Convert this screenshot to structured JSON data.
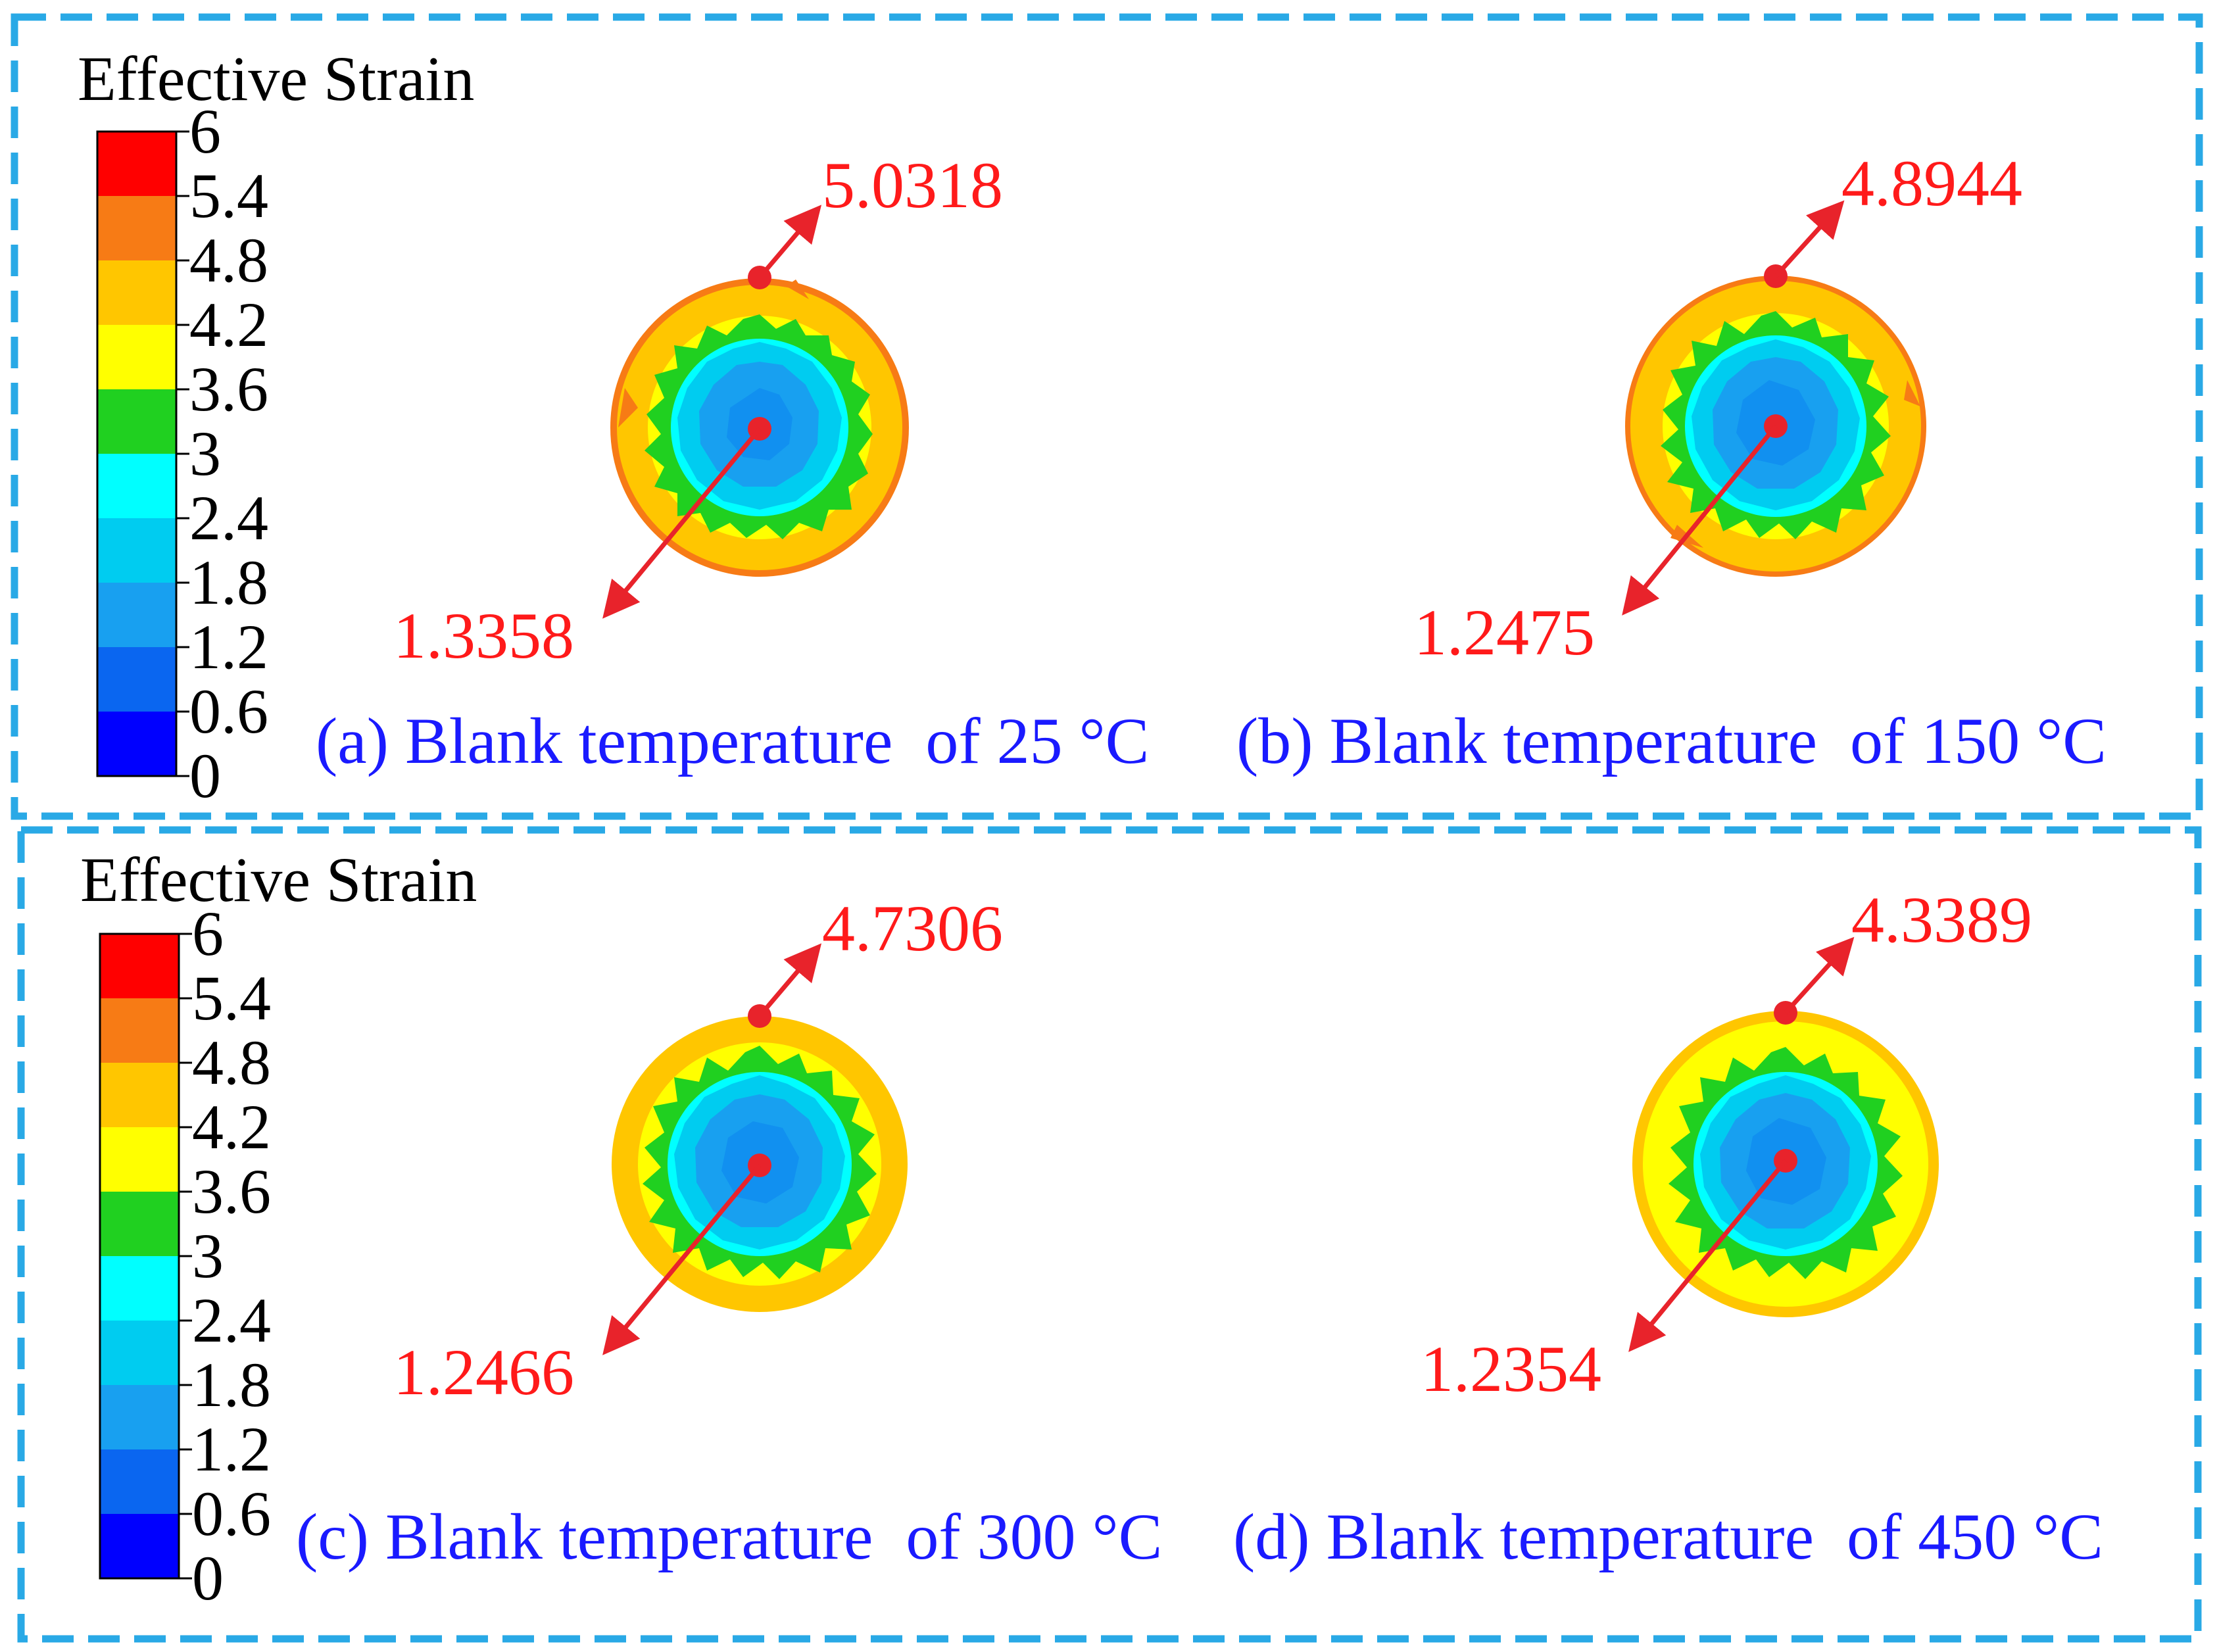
{
  "colors": {
    "frame": "#29a9e6",
    "legend_text": "#000000",
    "value_text": "#ff1a1a",
    "caption_text": "#1a1aff",
    "arrow": "#e8232b"
  },
  "legend": {
    "title": "Effective Strain",
    "ticks": [
      "6",
      "5.4",
      "4.8",
      "4.2",
      "3.6",
      "3",
      "2.4",
      "1.8",
      "1.2",
      "0.6",
      "0"
    ],
    "bands": [
      "#ff0000",
      "#f77b15",
      "#ffc600",
      "#ffff00",
      "#20d020",
      "#00ffff",
      "#00ccf0",
      "#18a0f0",
      "#0a66f0",
      "#0000ff"
    ]
  },
  "panels": [
    {
      "id": "a",
      "max": "5.0318",
      "min": "1.3358",
      "caption": "(a) Blank temperature  of 25 °C"
    },
    {
      "id": "b",
      "max": "4.8944",
      "min": "1.2475",
      "caption": "(b) Blank temperature  of 150 °C"
    },
    {
      "id": "c",
      "max": "4.7306",
      "min": "1.2466",
      "caption": "(c) Blank temperature  of 300 °C"
    },
    {
      "id": "d",
      "max": "4.3389",
      "min": "1.2354",
      "caption": "(d) Blank temperature  of 450 °C"
    }
  ]
}
